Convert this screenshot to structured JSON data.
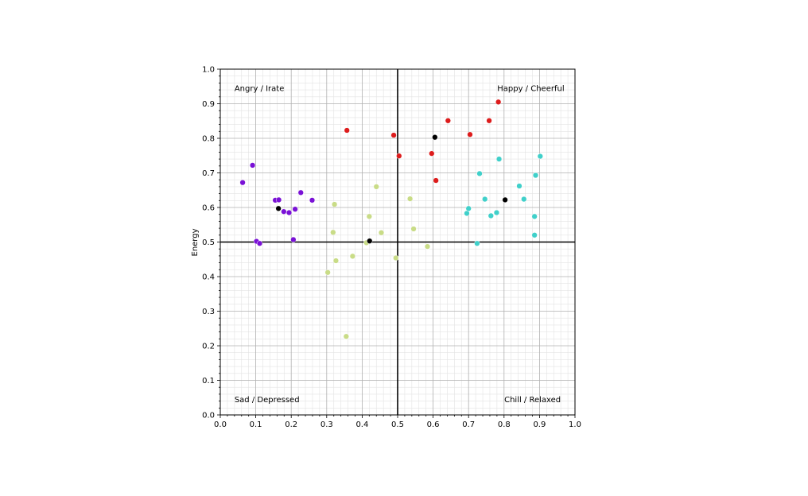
{
  "chart_data": {
    "type": "scatter",
    "title": "",
    "xlabel": "",
    "ylabel": "Energy",
    "xlim": [
      0.0,
      1.0
    ],
    "ylim": [
      0.0,
      1.0
    ],
    "xticks": [
      "0.0",
      "0.1",
      "0.2",
      "0.3",
      "0.4",
      "0.5",
      "0.6",
      "0.7",
      "0.8",
      "0.9",
      "1.0"
    ],
    "yticks": [
      "0.0",
      "0.1",
      "0.2",
      "0.3",
      "0.4",
      "0.5",
      "0.6",
      "0.7",
      "0.8",
      "0.9",
      "1.0"
    ],
    "grid": "major and minor",
    "reference_lines": {
      "x": 0.5,
      "y": 0.5
    },
    "annotations": [
      {
        "text": "Angry / Irate",
        "x": 0.04,
        "y": 0.945,
        "anchor": "start"
      },
      {
        "text": "Happy / Cheerful",
        "x": 0.97,
        "y": 0.945,
        "anchor": "end"
      },
      {
        "text": "Sad / Depressed",
        "x": 0.04,
        "y": 0.045,
        "anchor": "start"
      },
      {
        "text": "Chill / Relaxed",
        "x": 0.96,
        "y": 0.045,
        "anchor": "end"
      }
    ],
    "series": [
      {
        "color": "#dd1c1c",
        "points": [
          [
            0.357,
            0.823
          ],
          [
            0.489,
            0.809
          ],
          [
            0.504,
            0.749
          ],
          [
            0.596,
            0.756
          ],
          [
            0.608,
            0.678
          ],
          [
            0.642,
            0.851
          ],
          [
            0.704,
            0.811
          ],
          [
            0.758,
            0.851
          ],
          [
            0.784,
            0.905
          ]
        ]
      },
      {
        "color": "#7a12d6",
        "points": [
          [
            0.063,
            0.672
          ],
          [
            0.091,
            0.722
          ],
          [
            0.102,
            0.502
          ],
          [
            0.111,
            0.496
          ],
          [
            0.155,
            0.621
          ],
          [
            0.165,
            0.622
          ],
          [
            0.179,
            0.588
          ],
          [
            0.194,
            0.585
          ],
          [
            0.211,
            0.595
          ],
          [
            0.227,
            0.643
          ],
          [
            0.259,
            0.621
          ],
          [
            0.206,
            0.507
          ]
        ]
      },
      {
        "color": "#c9dc87",
        "points": [
          [
            0.303,
            0.412
          ],
          [
            0.318,
            0.528
          ],
          [
            0.322,
            0.609
          ],
          [
            0.326,
            0.446
          ],
          [
            0.355,
            0.227
          ],
          [
            0.373,
            0.459
          ],
          [
            0.412,
            0.498
          ],
          [
            0.42,
            0.574
          ],
          [
            0.44,
            0.66
          ],
          [
            0.454,
            0.527
          ],
          [
            0.495,
            0.454
          ],
          [
            0.535,
            0.625
          ],
          [
            0.545,
            0.538
          ],
          [
            0.584,
            0.487
          ]
        ]
      },
      {
        "color": "#40d0ca",
        "points": [
          [
            0.695,
            0.583
          ],
          [
            0.7,
            0.597
          ],
          [
            0.724,
            0.496
          ],
          [
            0.731,
            0.698
          ],
          [
            0.746,
            0.624
          ],
          [
            0.763,
            0.576
          ],
          [
            0.779,
            0.585
          ],
          [
            0.786,
            0.74
          ],
          [
            0.843,
            0.662
          ],
          [
            0.856,
            0.624
          ],
          [
            0.886,
            0.574
          ],
          [
            0.886,
            0.52
          ],
          [
            0.889,
            0.693
          ],
          [
            0.902,
            0.748
          ]
        ]
      },
      {
        "color": "#000000",
        "points": [
          [
            0.164,
            0.597
          ],
          [
            0.421,
            0.503
          ],
          [
            0.605,
            0.803
          ],
          [
            0.803,
            0.622
          ]
        ]
      }
    ]
  }
}
